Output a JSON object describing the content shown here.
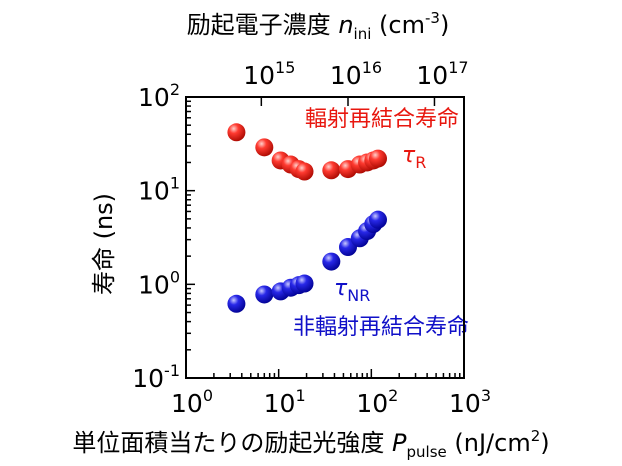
{
  "chart_data": {
    "type": "scatter",
    "x_scale": "log",
    "y_scale": "log",
    "xlim": [
      1,
      1000
    ],
    "ylim": [
      0.1,
      100
    ],
    "x_tick_labels": [
      {
        "base": "10",
        "exp": "0"
      },
      {
        "base": "10",
        "exp": "1"
      },
      {
        "base": "10",
        "exp": "2"
      },
      {
        "base": "10",
        "exp": "3"
      }
    ],
    "y_tick_labels": [
      {
        "base": "10",
        "exp": "-1"
      },
      {
        "base": "10",
        "exp": "0"
      },
      {
        "base": "10",
        "exp": "1"
      },
      {
        "base": "10",
        "exp": "2"
      }
    ],
    "top_axis_tick_labels": [
      {
        "base": "10",
        "exp": "15"
      },
      {
        "base": "10",
        "exp": "16"
      },
      {
        "base": "10",
        "exp": "17"
      }
    ],
    "top_axis_tick_x_values": [
      6.5,
      56,
      480
    ],
    "xlabel": {
      "prefix": "単位面積当たりの励起光強度 ",
      "var": "P",
      "sub": "pulse",
      "unit_open": " (nJ/cm",
      "unit_sup": "2",
      "unit_close": ")"
    },
    "ylabel": "寿命 (ns)",
    "top_label": {
      "prefix": "励起電子濃度 ",
      "var": "n",
      "sub": "ini",
      "unit_open": " (cm",
      "unit_sup": "-3",
      "unit_close": ")"
    },
    "series": [
      {
        "color": "#e8170f",
        "symbol": "τ",
        "symbol_sub": "R",
        "annotation": "輻射再結合寿命",
        "points": [
          {
            "x": 3.5,
            "y": 42
          },
          {
            "x": 7.0,
            "y": 29
          },
          {
            "x": 10.5,
            "y": 21
          },
          {
            "x": 13.5,
            "y": 19
          },
          {
            "x": 16.5,
            "y": 17
          },
          {
            "x": 19.0,
            "y": 16
          },
          {
            "x": 37,
            "y": 16.5
          },
          {
            "x": 56,
            "y": 17
          },
          {
            "x": 75,
            "y": 19
          },
          {
            "x": 90,
            "y": 20
          },
          {
            "x": 105,
            "y": 21
          },
          {
            "x": 118,
            "y": 22
          }
        ]
      },
      {
        "color": "#1010c8",
        "symbol": "τ",
        "symbol_sub": "NR",
        "annotation": "非輻射再結合寿命",
        "points": [
          {
            "x": 3.5,
            "y": 0.62
          },
          {
            "x": 7.0,
            "y": 0.78
          },
          {
            "x": 10.5,
            "y": 0.84
          },
          {
            "x": 13.5,
            "y": 0.92
          },
          {
            "x": 16.5,
            "y": 0.98
          },
          {
            "x": 19.0,
            "y": 1.02
          },
          {
            "x": 37,
            "y": 1.75
          },
          {
            "x": 56,
            "y": 2.5
          },
          {
            "x": 75,
            "y": 3.1
          },
          {
            "x": 90,
            "y": 3.7
          },
          {
            "x": 105,
            "y": 4.4
          },
          {
            "x": 118,
            "y": 4.9
          }
        ]
      }
    ]
  }
}
